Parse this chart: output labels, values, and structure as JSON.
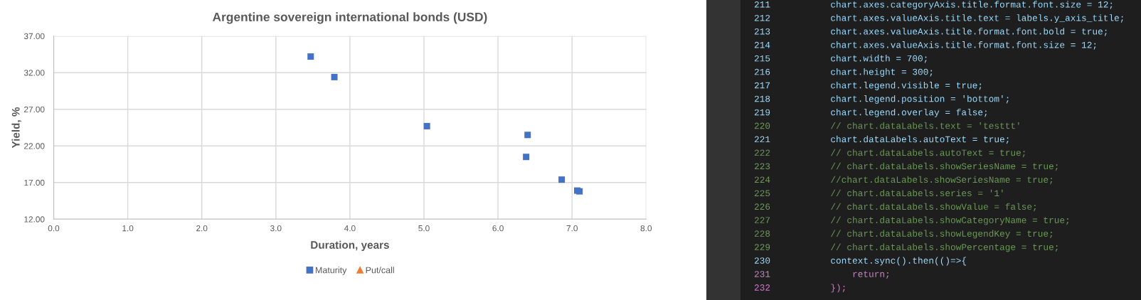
{
  "chart_data": [
    {
      "type": "scatter",
      "title": "Argentine sovereign international bonds (USD)",
      "xlabel": "Duration, years",
      "ylabel": "Yield, %",
      "series": [
        {
          "name": "Maturity",
          "color": "#4472c4",
          "marker": "square",
          "x": [
            3.47,
            3.79,
            5.04,
            6.4,
            6.38,
            6.86,
            7.07,
            7.1
          ],
          "values": [
            34.2,
            31.4,
            24.7,
            23.5,
            20.5,
            17.4,
            15.9,
            15.8
          ]
        },
        {
          "name": "Put/call",
          "color": "#ed7d31",
          "marker": "triangle"
        }
      ],
      "xlim": [
        0,
        8
      ],
      "xticks": [
        {
          "value": 0,
          "label": "0.0"
        },
        {
          "value": 1,
          "label": "1.0"
        },
        {
          "value": 2,
          "label": "2.0"
        },
        {
          "value": 3,
          "label": "3.0"
        },
        {
          "value": 4,
          "label": "4.0"
        },
        {
          "value": 5,
          "label": "5.0"
        },
        {
          "value": 6,
          "label": "6.0"
        },
        {
          "value": 7,
          "label": "7.0"
        },
        {
          "value": 8,
          "label": "8.0"
        }
      ],
      "ylim": [
        12,
        37
      ],
      "yticks": [
        {
          "value": 12,
          "label": "12.00"
        },
        {
          "value": 17,
          "label": "17.00"
        },
        {
          "value": 22,
          "label": "22.00"
        },
        {
          "value": 27,
          "label": "27.00"
        },
        {
          "value": 32,
          "label": "32.00"
        },
        {
          "value": 37,
          "label": "37.00"
        }
      ],
      "grid": true,
      "legend": "bottom"
    },
    {
      "type": "other",
      "annotations": [
        "211 chart.axes.categoryAxis.title.format.font.size = 12;",
        "212 chart.axes.valueAxis.title.text = labels.y_axis_title;",
        "213 chart.axes.valueAxis.title.format.font.bold = true;",
        "214 chart.axes.valueAxis.title.format.font.size = 12;",
        "215 chart.width = 700;",
        "216 chart.height = 300;",
        "217 chart.legend.visible = true;",
        "218 chart.legend.position = 'bottom';",
        "219 chart.legend.overlay = false;",
        "220 // chart.dataLabels.text = 'testtt'",
        "221 chart.dataLabels.autoText = true;",
        "222 // chart.dataLabels.autoText = true;",
        "223 // chart.dataLabels.showSeriesName = true;",
        "224 //chart.dataLabels.showSeriesName = true;",
        "225 // chart.dataLabels.series = '1'",
        "226 // chart.dataLabels.showValue = false;",
        "227 // chart.dataLabels.showCategoryName = true;",
        "228 // chart.dataLabels.showLegendKey = true;",
        "229 // chart.dataLabels.showPercentage = true;",
        "230 context.sync().then(()=>{",
        "231     return;",
        "232 });"
      ],
      "colors": [
        "#9cdcfe",
        "#9cdcfe",
        "#9cdcfe",
        "#9cdcfe",
        "#9cdcfe",
        "#9cdcfe",
        "#9cdcfe",
        "#9cdcfe",
        "#9cdcfe",
        "#6a9955",
        "#9cdcfe",
        "#6a9955",
        "#6a9955",
        "#6a9955",
        "#6a9955",
        "#6a9955",
        "#6a9955",
        "#6a9955",
        "#6a9955",
        "#9cdcfe",
        "#c586c0",
        "#da70d6"
      ]
    }
  ]
}
